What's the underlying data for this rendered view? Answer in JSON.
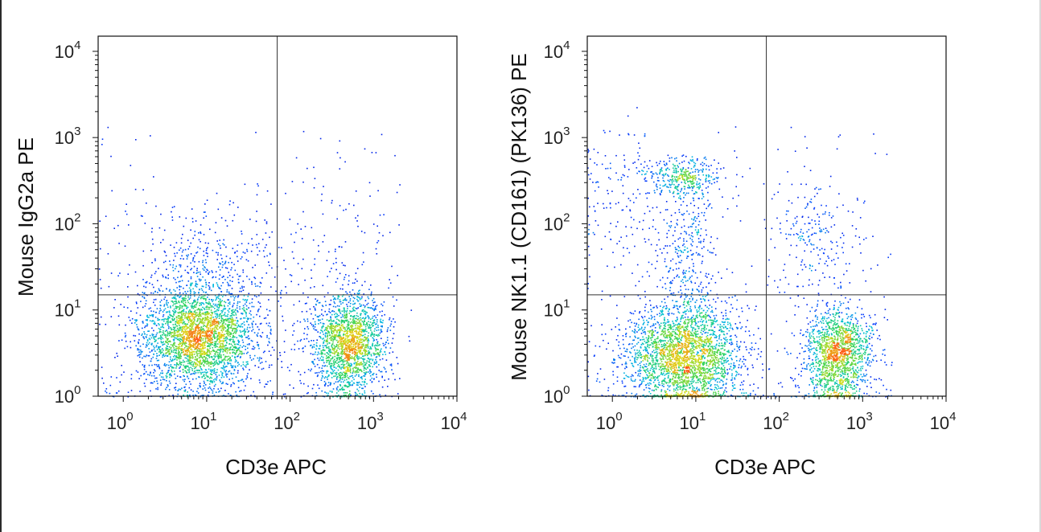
{
  "chart_data": [
    {
      "type": "scatter",
      "subtype": "flow-cytometry-density-dot-plot",
      "xlabel": "CD3e APC",
      "ylabel": "Mouse IgG2a PE",
      "x_scale": "log",
      "y_scale": "log",
      "xlim": [
        0.5,
        10000
      ],
      "ylim": [
        1,
        15000
      ],
      "x_tick_labels": [
        "10^0",
        "10^1",
        "10^2",
        "10^3",
        "10^4"
      ],
      "y_tick_labels": [
        "10^0",
        "10^1",
        "10^2",
        "10^3",
        "10^4"
      ],
      "quadrant_gate": {
        "x": 70,
        "y": 15
      },
      "populations": [
        {
          "x_center": 8,
          "y_center": 5,
          "x_spread_decades": 0.35,
          "y_spread_decades": 0.3,
          "weight": 0.55
        },
        {
          "x_center": 500,
          "y_center": 4,
          "x_spread_decades": 0.22,
          "y_spread_decades": 0.28,
          "weight": 0.35
        },
        {
          "x_center": 10,
          "y_center": 30,
          "x_spread_decades": 0.5,
          "y_spread_decades": 0.4,
          "weight": 0.08
        },
        {
          "x_center": 300,
          "y_center": 40,
          "x_spread_decades": 0.4,
          "y_spread_decades": 0.45,
          "weight": 0.02
        }
      ]
    },
    {
      "type": "scatter",
      "subtype": "flow-cytometry-density-dot-plot",
      "xlabel": "CD3e APC",
      "ylabel": "Mouse NK1.1 (CD161) (PK136) PE",
      "x_scale": "log",
      "y_scale": "log",
      "xlim": [
        0.5,
        10000
      ],
      "ylim": [
        1,
        15000
      ],
      "x_tick_labels": [
        "10^0",
        "10^1",
        "10^2",
        "10^3",
        "10^4"
      ],
      "y_tick_labels": [
        "10^0",
        "10^1",
        "10^2",
        "10^3",
        "10^4"
      ],
      "quadrant_gate": {
        "x": 70,
        "y": 15
      },
      "populations": [
        {
          "x_center": 7,
          "y_center": 3,
          "x_spread_decades": 0.35,
          "y_spread_decades": 0.3,
          "weight": 0.5
        },
        {
          "x_center": 500,
          "y_center": 3,
          "x_spread_decades": 0.2,
          "y_spread_decades": 0.28,
          "weight": 0.3
        },
        {
          "x_center": 7,
          "y_center": 350,
          "x_spread_decades": 0.22,
          "y_spread_decades": 0.12,
          "weight": 0.07
        },
        {
          "x_center": 8,
          "y_center": 40,
          "x_spread_decades": 0.18,
          "y_spread_decades": 0.45,
          "weight": 0.06
        },
        {
          "x_center": 250,
          "y_center": 60,
          "x_spread_decades": 0.25,
          "y_spread_decades": 0.35,
          "weight": 0.04
        },
        {
          "x_center": 1.5,
          "y_center": 200,
          "x_spread_decades": 0.3,
          "y_spread_decades": 0.5,
          "weight": 0.03
        }
      ]
    }
  ]
}
